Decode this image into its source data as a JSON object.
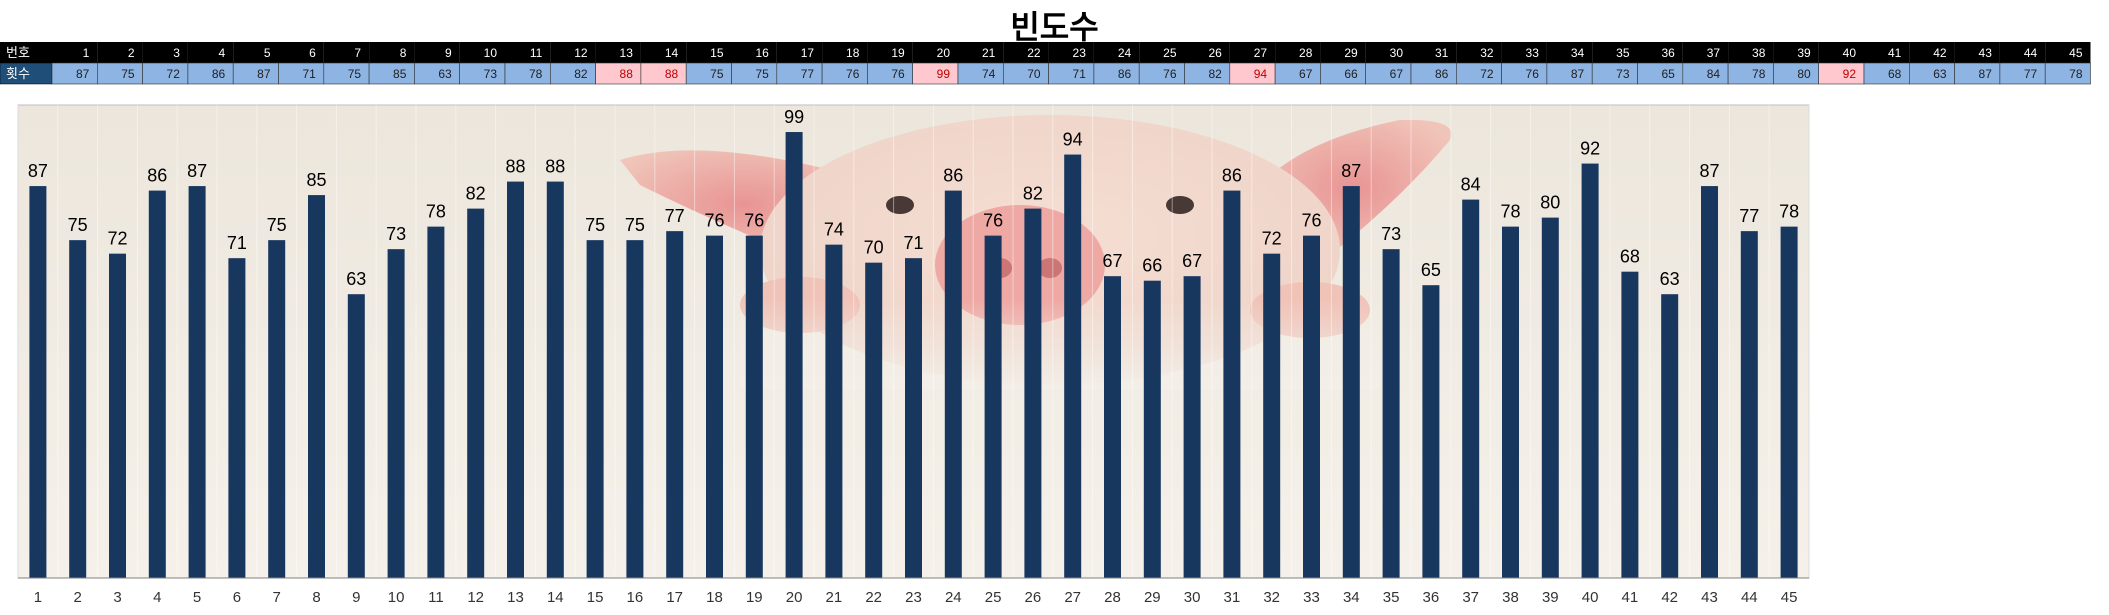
{
  "title": "빈도수",
  "table": {
    "row1_label": "번호",
    "row2_label": "횟수",
    "highlight_color": "#ffc7ce",
    "highlight_text_color": "#c00000",
    "cell_color": "#8db4e2",
    "header_color": "#000000",
    "label_cell_color": "#1f4e78"
  },
  "chart_data": {
    "type": "bar",
    "title": "빈도수",
    "categories": [
      "1",
      "2",
      "3",
      "4",
      "5",
      "6",
      "7",
      "8",
      "9",
      "10",
      "11",
      "12",
      "13",
      "14",
      "15",
      "16",
      "17",
      "18",
      "19",
      "20",
      "21",
      "22",
      "23",
      "24",
      "25",
      "26",
      "27",
      "28",
      "29",
      "30",
      "31",
      "32",
      "33",
      "34",
      "35",
      "36",
      "37",
      "38",
      "39",
      "40",
      "41",
      "42",
      "43",
      "44",
      "45"
    ],
    "values": [
      87,
      75,
      72,
      86,
      87,
      71,
      75,
      85,
      63,
      73,
      78,
      82,
      88,
      88,
      75,
      75,
      77,
      76,
      76,
      99,
      74,
      70,
      71,
      86,
      76,
      82,
      94,
      67,
      66,
      67,
      86,
      72,
      76,
      87,
      73,
      65,
      84,
      78,
      80,
      92,
      68,
      63,
      87,
      77,
      78
    ],
    "highlighted": [
      "13",
      "14",
      "20",
      "27",
      "40"
    ],
    "bar_color": "#17375e",
    "ylim": [
      0,
      105
    ],
    "xlabel": "",
    "ylabel": "",
    "grid": true
  }
}
